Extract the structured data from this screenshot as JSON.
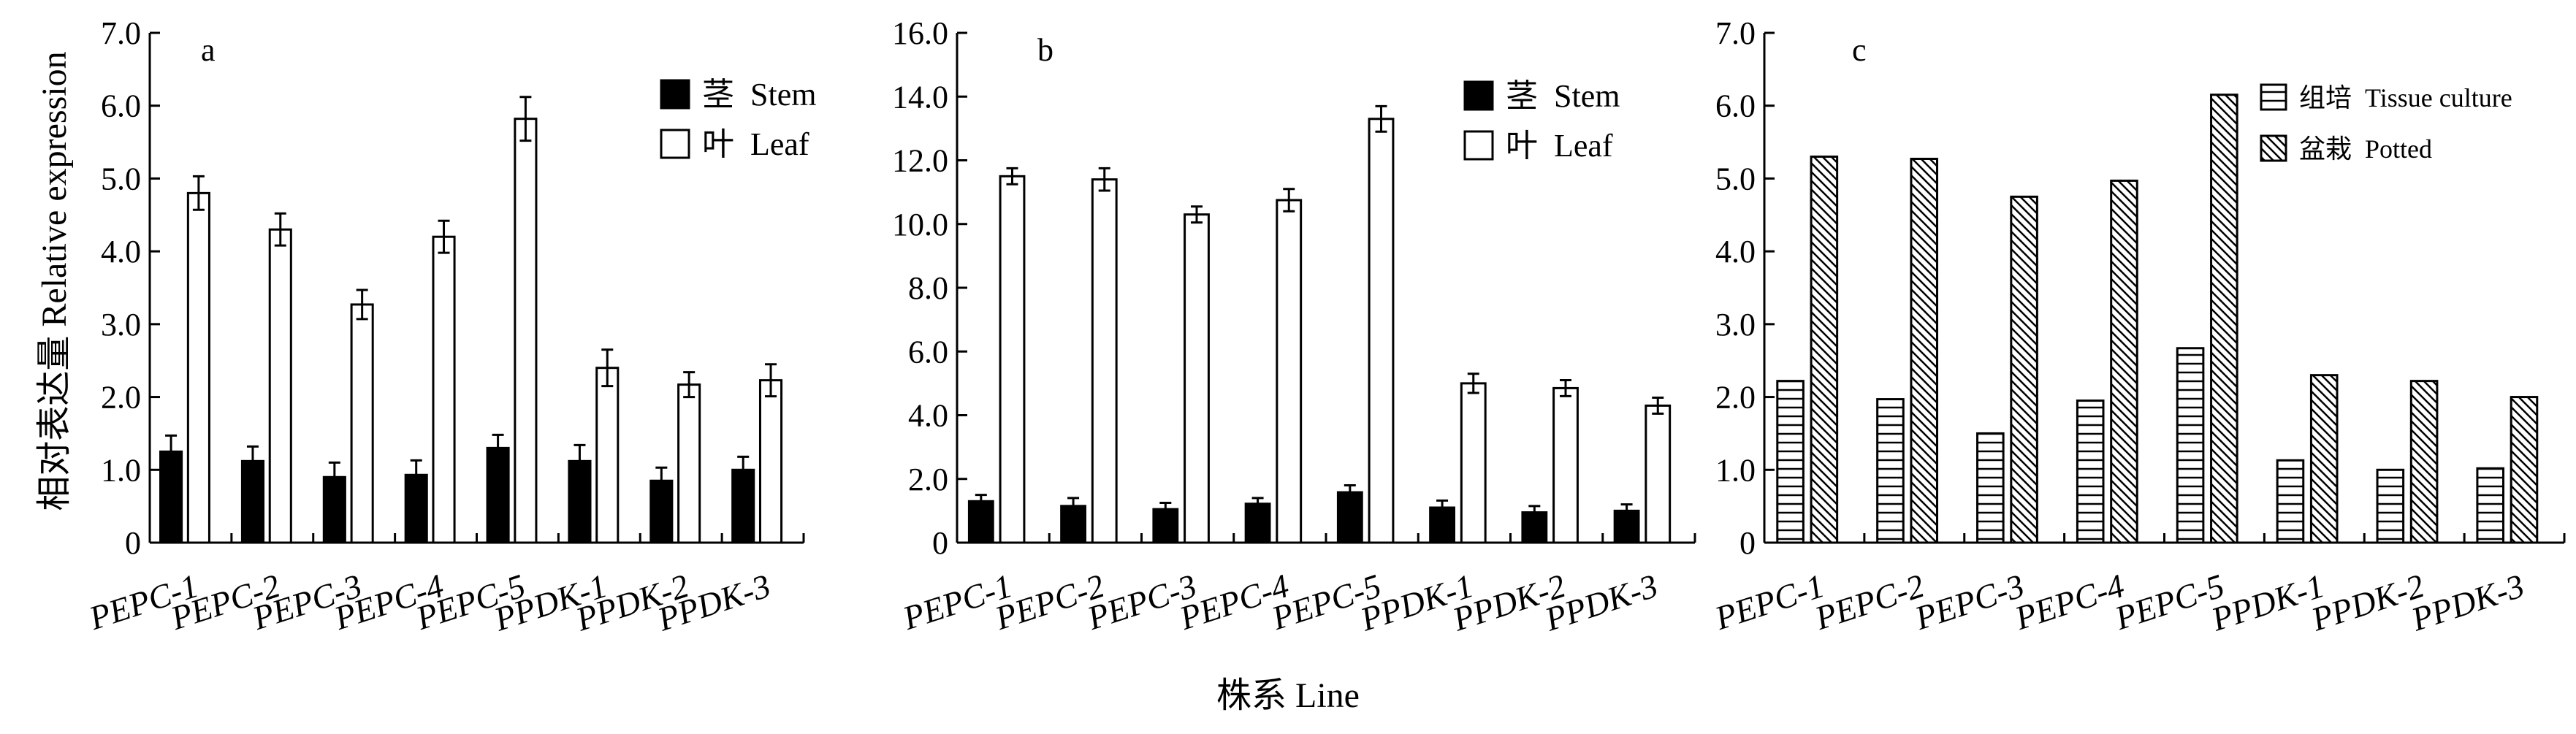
{
  "figure": {
    "ylabel": "相对表达量  Relative expression",
    "xlabel": "株系  Line"
  },
  "chart_data": [
    {
      "type": "bar",
      "panel": "a",
      "categories": [
        "PEPC-1",
        "PEPC-2",
        "PEPC-3",
        "PEPC-4",
        "PEPC-5",
        "PPDK-1",
        "PPDK-2",
        "PPDK-3"
      ],
      "ylim": [
        0,
        7.0
      ],
      "yticks": [
        "0",
        "1.0",
        "2.0",
        "3.0",
        "4.0",
        "5.0",
        "6.0",
        "7.0"
      ],
      "ytick_values": [
        0,
        1,
        2,
        3,
        4,
        5,
        6,
        7
      ],
      "legend_position": "top-right",
      "series": [
        {
          "name": "茎  Stem",
          "style": "black",
          "values": [
            1.25,
            1.12,
            0.9,
            0.93,
            1.3,
            1.12,
            0.85,
            1.0
          ],
          "errors": [
            0.22,
            0.2,
            0.2,
            0.2,
            0.18,
            0.22,
            0.18,
            0.18
          ]
        },
        {
          "name": "叶  Leaf",
          "style": "white",
          "values": [
            4.8,
            4.3,
            3.27,
            4.2,
            5.82,
            2.4,
            2.17,
            2.23
          ],
          "errors": [
            0.23,
            0.22,
            0.2,
            0.22,
            0.3,
            0.25,
            0.17,
            0.22
          ]
        }
      ]
    },
    {
      "type": "bar",
      "panel": "b",
      "categories": [
        "PEPC-1",
        "PEPC-2",
        "PEPC-3",
        "PEPC-4",
        "PEPC-5",
        "PPDK-1",
        "PPDK-2",
        "PPDK-3"
      ],
      "ylim": [
        0,
        16.0
      ],
      "yticks": [
        "0",
        "2.0",
        "4.0",
        "6.0",
        "8.0",
        "10.0",
        "12.0",
        "14.0",
        "16.0"
      ],
      "ytick_values": [
        0,
        2,
        4,
        6,
        8,
        10,
        12,
        14,
        16
      ],
      "legend_position": "top-right",
      "series": [
        {
          "name": "茎  Stem",
          "style": "black",
          "values": [
            1.3,
            1.15,
            1.05,
            1.22,
            1.58,
            1.1,
            0.95,
            1.0
          ],
          "errors": [
            0.2,
            0.25,
            0.2,
            0.18,
            0.22,
            0.22,
            0.2,
            0.2
          ]
        },
        {
          "name": "叶  Leaf",
          "style": "white",
          "values": [
            11.5,
            11.4,
            10.3,
            10.75,
            13.3,
            5.0,
            4.85,
            4.3
          ],
          "errors": [
            0.25,
            0.35,
            0.25,
            0.35,
            0.4,
            0.3,
            0.25,
            0.25
          ]
        }
      ]
    },
    {
      "type": "bar",
      "panel": "c",
      "categories": [
        "PEPC-1",
        "PEPC-2",
        "PEPC-3",
        "PEPC-4",
        "PEPC-5",
        "PPDK-1",
        "PPDK-2",
        "PPDK-3"
      ],
      "ylim": [
        0,
        7.0
      ],
      "yticks": [
        "0",
        "1.0",
        "2.0",
        "3.0",
        "4.0",
        "5.0",
        "6.0",
        "7.0"
      ],
      "ytick_values": [
        0,
        1,
        2,
        3,
        4,
        5,
        6,
        7
      ],
      "legend_position": "top-right",
      "series": [
        {
          "name": "组培  Tissue culture",
          "style": "hlines",
          "values": [
            2.22,
            1.97,
            1.5,
            1.95,
            2.67,
            1.13,
            1.0,
            1.02
          ],
          "errors": []
        },
        {
          "name": "盆栽  Potted",
          "style": "diag",
          "values": [
            5.3,
            5.27,
            4.75,
            4.97,
            6.15,
            2.3,
            2.22,
            2.0
          ],
          "errors": []
        }
      ]
    }
  ]
}
